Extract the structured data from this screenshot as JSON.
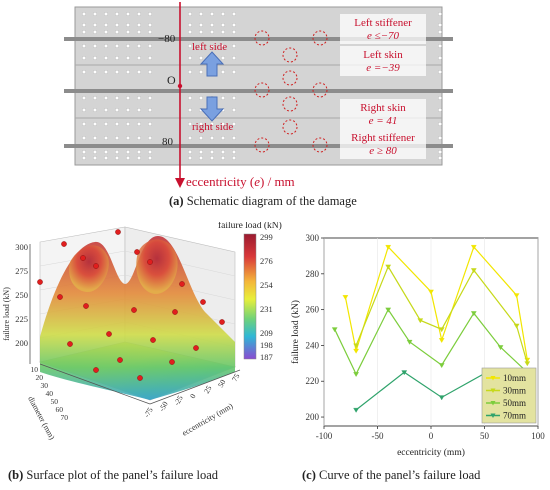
{
  "panel_a": {
    "caption_letter": "(a)",
    "caption_text": " Schematic diagram of the damage",
    "tick_top": "−80",
    "tick_origin": "O",
    "tick_bottom": "80",
    "side_left": "left side",
    "side_right": "right side",
    "axis_label": "eccentricity (",
    "axis_label_var": "e",
    "axis_label_tail": ") / mm",
    "labels": [
      {
        "line1": "Left stiffener",
        "line2": "e ≤−70"
      },
      {
        "line1": "Left skin",
        "line2": "e =−39"
      },
      {
        "line1": "Right skin",
        "line2": "e = 41"
      },
      {
        "line1": "Right stiffener",
        "line2": "e ≥ 80"
      }
    ],
    "colors": {
      "panel": "#d3d3d3",
      "axis": "#c8102e",
      "arrow": "#6a8fd6"
    }
  },
  "panel_b": {
    "caption_letter": "(b)",
    "caption_text": " Surface plot of the panel’s failure load",
    "colorbar_title": "failure load (kN)",
    "colorbar_ticks": [
      "299",
      "276",
      "254",
      "231",
      "209",
      "198",
      "187"
    ],
    "z_label": "failure load (kN)",
    "z_ticks": [
      "300",
      "275",
      "250",
      "225",
      "200"
    ],
    "y_label": "diameter (mm)",
    "y_ticks": [
      "10",
      "20",
      "30",
      "40",
      "50",
      "60",
      "70"
    ],
    "x_label": "eccentricity (mm)",
    "x_ticks": [
      "75",
      "50",
      "25",
      "0",
      "-25",
      "-50",
      "-75"
    ]
  },
  "panel_c": {
    "caption_letter": "(c)",
    "caption_text": " Curve of the panel’s failure load"
  },
  "chart_data": [
    {
      "type": "line",
      "xlabel": "eccentricity (mm)",
      "ylabel": "failure load (kN)",
      "xlim": [
        -100,
        100
      ],
      "ylim": [
        195,
        300
      ],
      "xticks": [
        -100,
        -50,
        0,
        50,
        100
      ],
      "yticks": [
        200,
        220,
        240,
        260,
        280,
        300
      ],
      "legend_position": "bottom-right",
      "series": [
        {
          "name": "10mm",
          "color": "#f2e600",
          "x": [
            -80,
            -70,
            -40,
            0,
            10,
            40,
            80,
            90
          ],
          "y": [
            267,
            237,
            295,
            270,
            243,
            295,
            268,
            232
          ]
        },
        {
          "name": "30mm",
          "color": "#c6d91a",
          "x": [
            -70,
            -40,
            -10,
            10,
            40,
            80,
            90
          ],
          "y": [
            240,
            284,
            254,
            249,
            282,
            251,
            230
          ]
        },
        {
          "name": "50mm",
          "color": "#7ccd3c",
          "x": [
            -90,
            -70,
            -40,
            -20,
            10,
            40,
            65,
            90
          ],
          "y": [
            249,
            224,
            260,
            242,
            229,
            258,
            239,
            225
          ]
        },
        {
          "name": "70mm",
          "color": "#2fa36b",
          "x": [
            -70,
            -25,
            10,
            55
          ],
          "y": [
            204,
            225,
            211,
            226
          ]
        }
      ]
    }
  ]
}
